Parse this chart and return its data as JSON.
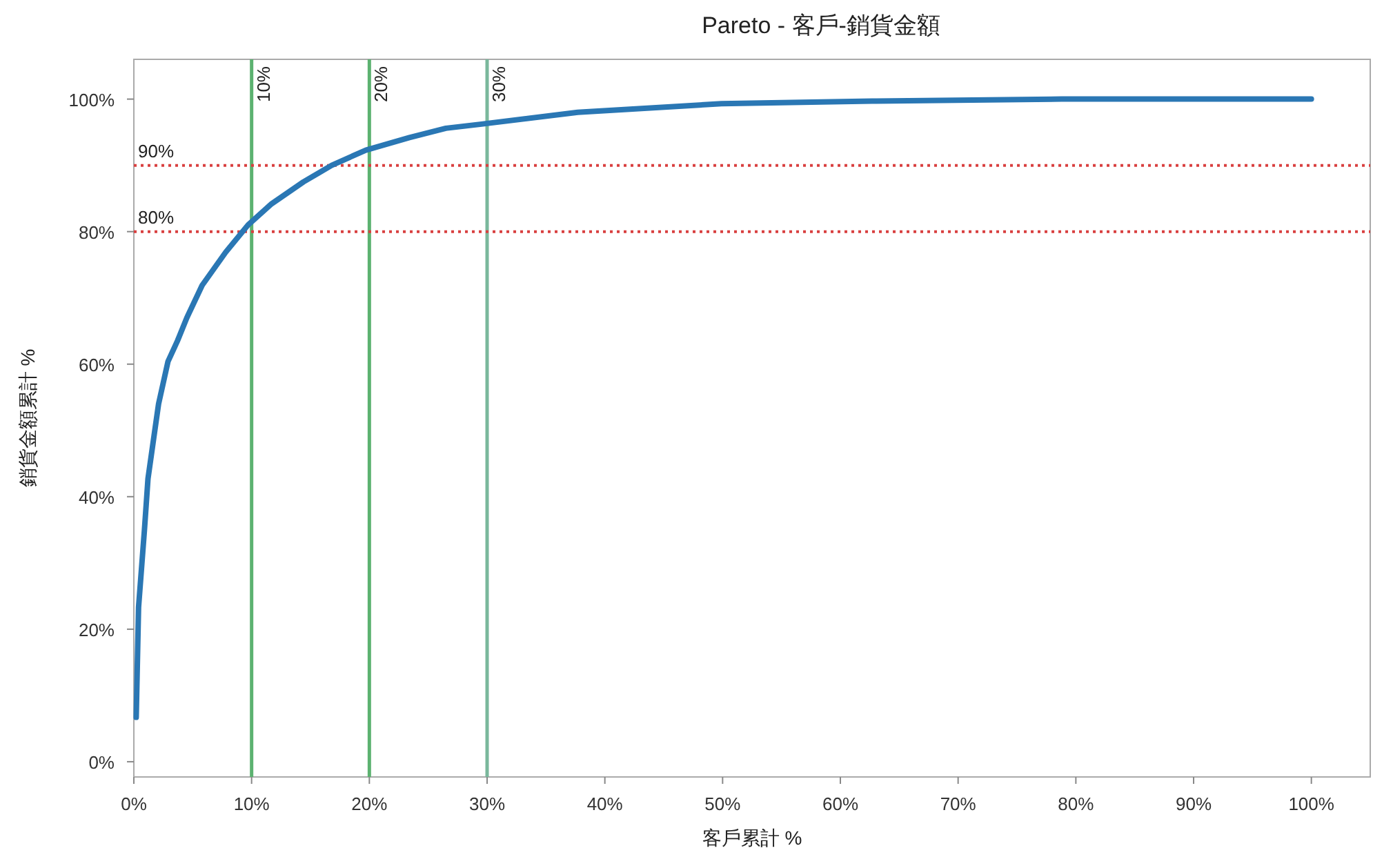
{
  "chart_data": {
    "type": "line",
    "title": "Pareto - 客戶-銷貨金額",
    "xlabel": "客戶累計 %",
    "ylabel": "銷貨金額累計 %",
    "series": [
      {
        "color": "#2a77b4",
        "x": [
          0.2,
          0.4,
          0.9,
          1.2,
          1.7,
          2.1,
          2.9,
          3.7,
          4.5,
          5.8,
          7.8,
          9.7,
          11.7,
          14.4,
          16.8,
          19.7,
          23.4,
          26.5,
          29.4,
          37.7,
          49.9,
          62.7,
          78.8,
          100
        ],
        "values": [
          6.7,
          23.3,
          35,
          42.7,
          49,
          54,
          60.4,
          63.5,
          67,
          71.9,
          76.9,
          81,
          84.2,
          87.5,
          90,
          92.3,
          94.2,
          95.6,
          96.2,
          98,
          99.3,
          99.7,
          100,
          100
        ]
      }
    ],
    "xlim": [
      0,
      105
    ],
    "ylim": [
      -2.3,
      106
    ],
    "xticks": [
      {
        "value": 0,
        "label": "0%"
      },
      {
        "value": 10,
        "label": "10%"
      },
      {
        "value": 20,
        "label": "20%"
      },
      {
        "value": 30,
        "label": "30%"
      },
      {
        "value": 40,
        "label": "40%"
      },
      {
        "value": 50,
        "label": "50%"
      },
      {
        "value": 60,
        "label": "60%"
      },
      {
        "value": 70,
        "label": "70%"
      },
      {
        "value": 80,
        "label": "80%"
      },
      {
        "value": 90,
        "label": "90%"
      },
      {
        "value": 100,
        "label": "100%"
      }
    ],
    "yticks": [
      {
        "value": 0,
        "label": "0%"
      },
      {
        "value": 20,
        "label": "20%"
      },
      {
        "value": 40,
        "label": "40%"
      },
      {
        "value": 60,
        "label": "60%"
      },
      {
        "value": 80,
        "label": "80%"
      },
      {
        "value": 100,
        "label": "100%"
      }
    ],
    "ref_lines": [
      {
        "axis": "x",
        "value": 10,
        "label": "10%",
        "color": "#5cb270",
        "line_style": "solid"
      },
      {
        "axis": "x",
        "value": 20,
        "label": "20%",
        "color": "#5cb270",
        "line_style": "solid"
      },
      {
        "axis": "x",
        "value": 30,
        "label": "30%",
        "color": "#7ab89c",
        "line_style": "solid"
      },
      {
        "axis": "y",
        "value": 90,
        "label": "90%",
        "color": "#d94040",
        "line_style": "dotted"
      },
      {
        "axis": "y",
        "value": 80,
        "label": "80%",
        "color": "#d94040",
        "line_style": "dotted"
      }
    ],
    "marker": "none",
    "line_style": "solid",
    "grid": false
  }
}
